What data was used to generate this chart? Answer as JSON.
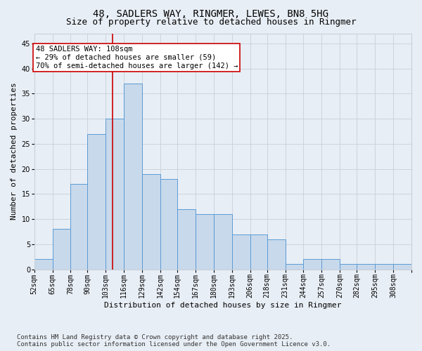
{
  "title_line1": "48, SADLERS WAY, RINGMER, LEWES, BN8 5HG",
  "title_line2": "Size of property relative to detached houses in Ringmer",
  "xlabel": "Distribution of detached houses by size in Ringmer",
  "ylabel": "Number of detached properties",
  "bin_labels": [
    "52sqm",
    "65sqm",
    "78sqm",
    "90sqm",
    "103sqm",
    "116sqm",
    "129sqm",
    "142sqm",
    "154sqm",
    "167sqm",
    "180sqm",
    "193sqm",
    "206sqm",
    "218sqm",
    "231sqm",
    "244sqm",
    "257sqm",
    "270sqm",
    "282sqm",
    "295sqm",
    "308sqm"
  ],
  "bin_edges": [
    52,
    65,
    78,
    90,
    103,
    116,
    129,
    142,
    154,
    167,
    180,
    193,
    206,
    218,
    231,
    244,
    257,
    270,
    282,
    295,
    308
  ],
  "bar_values": [
    2,
    8,
    17,
    27,
    30,
    37,
    19,
    18,
    12,
    11,
    11,
    7,
    7,
    6,
    1,
    2,
    2,
    1,
    1,
    1,
    1
  ],
  "bar_fill_color": "#c8d9eb",
  "bar_edge_color": "#5b9bd5",
  "red_line_x": 108,
  "red_line_color": "#cc0000",
  "annotation_line1": "48 SADLERS WAY: 108sqm",
  "annotation_line2": "← 29% of detached houses are smaller (59)",
  "annotation_line3": "70% of semi-detached houses are larger (142) →",
  "annotation_box_color": "#ffffff",
  "annotation_box_edge": "#cc0000",
  "ylim": [
    0,
    47
  ],
  "yticks": [
    0,
    5,
    10,
    15,
    20,
    25,
    30,
    35,
    40,
    45
  ],
  "grid_color": "#c8d0d8",
  "bg_color": "#e8eef5",
  "footer_text": "Contains HM Land Registry data © Crown copyright and database right 2025.\nContains public sector information licensed under the Open Government Licence v3.0.",
  "title_fontsize": 10,
  "subtitle_fontsize": 9,
  "axis_label_fontsize": 8,
  "tick_fontsize": 7,
  "annotation_fontsize": 7.5,
  "footer_fontsize": 6.5
}
